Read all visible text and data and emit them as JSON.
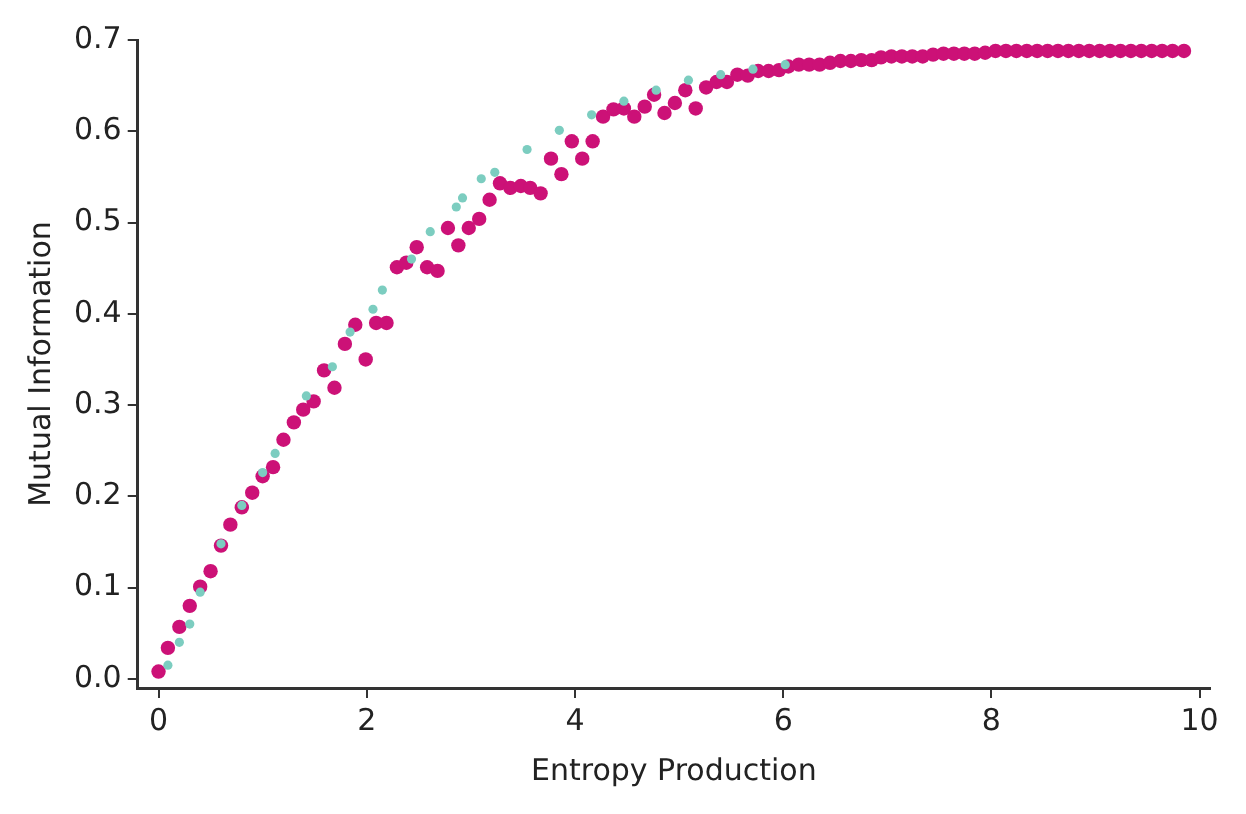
{
  "chart_data": {
    "type": "scatter",
    "xlabel": "Entropy Production",
    "ylabel": "Mutual Information",
    "xlim": [
      -0.2,
      10.1
    ],
    "ylim": [
      -0.01,
      0.7
    ],
    "xticks": [
      0,
      2,
      4,
      6,
      8,
      10
    ],
    "yticks": [
      {
        "value": 0,
        "label": "0.0"
      },
      0.1,
      0.2,
      0.3,
      0.4,
      0.5,
      0.6,
      0.7
    ],
    "grid": false,
    "legend": false,
    "marker": "circle",
    "series": [
      {
        "color": "#7ccdc0",
        "x": [
          0.09,
          0.2,
          0.3,
          0.4,
          0.6,
          0.8,
          1.0,
          1.12,
          1.42,
          1.67,
          1.84,
          2.06,
          2.15,
          2.43,
          2.61,
          2.86,
          2.92,
          3.1,
          3.23,
          3.54,
          3.85,
          4.16,
          4.47,
          4.78,
          5.09,
          5.4,
          5.71,
          6.02
        ],
        "values": [
          0.015,
          0.04,
          0.06,
          0.095,
          0.148,
          0.19,
          0.226,
          0.247,
          0.31,
          0.342,
          0.38,
          0.405,
          0.426,
          0.46,
          0.49,
          0.517,
          0.527,
          0.548,
          0.555,
          0.58,
          0.601,
          0.618,
          0.633,
          0.645,
          0.656,
          0.662,
          0.668,
          0.673
        ]
      },
      {
        "color": "#cc1177",
        "x": [
          0,
          0.09,
          0.2,
          0.3,
          0.4,
          0.5,
          0.6,
          0.69,
          0.8,
          0.9,
          1.0,
          1.1,
          1.2,
          1.3,
          1.39,
          1.49,
          1.59,
          1.69,
          1.79,
          1.89,
          1.99,
          2.09,
          2.19,
          2.29,
          2.38,
          2.48,
          2.58,
          2.68,
          2.78,
          2.88,
          2.98,
          3.08,
          3.18,
          3.28,
          3.38,
          3.48,
          3.57,
          3.67,
          3.77,
          3.87,
          3.97,
          4.07,
          4.17,
          4.27,
          4.37,
          4.47,
          4.57,
          4.67,
          4.76,
          4.86,
          4.96,
          5.06,
          5.16,
          5.26,
          5.36,
          5.46,
          5.56,
          5.66,
          5.76,
          5.86,
          5.96,
          6.05,
          6.15,
          6.25,
          6.35,
          6.45,
          6.55,
          6.65,
          6.75,
          6.85,
          6.94,
          7.04,
          7.14,
          7.24,
          7.34,
          7.44,
          7.54,
          7.64,
          7.74,
          7.84,
          7.94,
          8.04,
          8.14,
          8.24,
          8.34,
          8.44,
          8.54,
          8.64,
          8.74,
          8.84,
          8.94,
          9.04,
          9.14,
          9.24,
          9.34,
          9.44,
          9.54,
          9.64,
          9.74,
          9.85
        ],
        "values": [
          0.008,
          0.034,
          0.057,
          0.08,
          0.101,
          0.118,
          0.146,
          0.169,
          0.188,
          0.204,
          0.222,
          0.232,
          0.262,
          0.281,
          0.295,
          0.304,
          0.338,
          0.319,
          0.367,
          0.388,
          0.35,
          0.39,
          0.39,
          0.451,
          0.456,
          0.473,
          0.451,
          0.447,
          0.494,
          0.475,
          0.494,
          0.504,
          0.525,
          0.543,
          0.538,
          0.54,
          0.538,
          0.532,
          0.57,
          0.553,
          0.589,
          0.57,
          0.589,
          0.616,
          0.624,
          0.625,
          0.616,
          0.627,
          0.64,
          0.62,
          0.631,
          0.645,
          0.625,
          0.648,
          0.654,
          0.654,
          0.662,
          0.661,
          0.666,
          0.666,
          0.667,
          0.671,
          0.673,
          0.673,
          0.673,
          0.675,
          0.677,
          0.677,
          0.678,
          0.678,
          0.681,
          0.682,
          0.682,
          0.682,
          0.682,
          0.684,
          0.685,
          0.685,
          0.685,
          0.685,
          0.686,
          0.688,
          0.688,
          0.688,
          0.688,
          0.688,
          0.688,
          0.688,
          0.688,
          0.688,
          0.688,
          0.688,
          0.688,
          0.688,
          0.688,
          0.688,
          0.688,
          0.688,
          0.688,
          0.688
        ]
      }
    ]
  }
}
